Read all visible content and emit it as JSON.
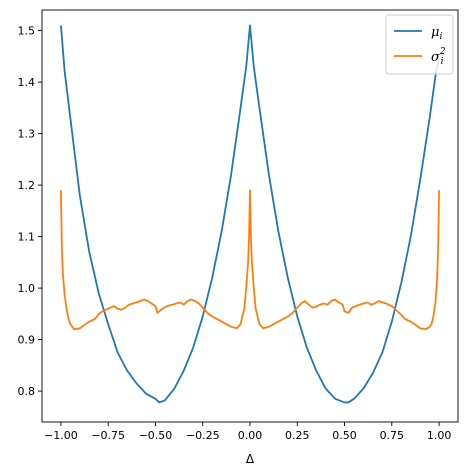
{
  "chart_data": {
    "type": "line",
    "title": "",
    "xlabel": "Δ",
    "ylabel": "",
    "xlim": [
      -1.1,
      1.1
    ],
    "ylim": [
      0.74,
      1.54
    ],
    "xticks": [
      -1.0,
      -0.75,
      -0.5,
      -0.25,
      0.0,
      0.25,
      0.5,
      0.75,
      1.0
    ],
    "xtick_labels": [
      "−1.00",
      "−0.75",
      "−0.50",
      "−0.25",
      "0.00",
      "0.25",
      "0.50",
      "0.75",
      "1.00"
    ],
    "yticks": [
      0.8,
      0.9,
      1.0,
      1.1,
      1.2,
      1.3,
      1.4,
      1.5
    ],
    "ytick_labels": [
      "0.8",
      "0.9",
      "1.0",
      "1.1",
      "1.2",
      "1.3",
      "1.4",
      "1.5"
    ],
    "legend": {
      "position": "top-right",
      "entries": [
        "μ_i",
        "σ_i^2"
      ]
    },
    "grid": false,
    "series": [
      {
        "name": "μ_i",
        "color": "#1f77b4",
        "x": [
          -1.0,
          -0.98,
          -0.95,
          -0.9,
          -0.85,
          -0.8,
          -0.75,
          -0.7,
          -0.65,
          -0.6,
          -0.55,
          -0.5,
          -0.48,
          -0.45,
          -0.4,
          -0.35,
          -0.3,
          -0.25,
          -0.2,
          -0.15,
          -0.1,
          -0.05,
          -0.02,
          0.0,
          0.02,
          0.05,
          0.1,
          0.15,
          0.2,
          0.25,
          0.3,
          0.35,
          0.4,
          0.45,
          0.5,
          0.52,
          0.55,
          0.6,
          0.65,
          0.7,
          0.75,
          0.8,
          0.85,
          0.9,
          0.95,
          0.98,
          1.0
        ],
        "y": [
          1.51,
          1.42,
          1.33,
          1.18,
          1.07,
          0.99,
          0.93,
          0.875,
          0.84,
          0.815,
          0.795,
          0.785,
          0.778,
          0.782,
          0.805,
          0.84,
          0.885,
          0.945,
          1.02,
          1.11,
          1.22,
          1.35,
          1.43,
          1.51,
          1.43,
          1.35,
          1.22,
          1.11,
          1.02,
          0.945,
          0.885,
          0.84,
          0.805,
          0.785,
          0.778,
          0.778,
          0.785,
          0.805,
          0.835,
          0.875,
          0.935,
          1.01,
          1.1,
          1.21,
          1.33,
          1.41,
          1.45
        ]
      },
      {
        "name": "σ_i^2",
        "color": "#ff7f0e",
        "x": [
          -1.0,
          -0.995,
          -0.99,
          -0.98,
          -0.97,
          -0.96,
          -0.95,
          -0.93,
          -0.9,
          -0.87,
          -0.85,
          -0.82,
          -0.8,
          -0.78,
          -0.75,
          -0.72,
          -0.7,
          -0.68,
          -0.66,
          -0.64,
          -0.62,
          -0.6,
          -0.58,
          -0.56,
          -0.54,
          -0.52,
          -0.5,
          -0.49,
          -0.47,
          -0.45,
          -0.43,
          -0.41,
          -0.39,
          -0.37,
          -0.35,
          -0.33,
          -0.31,
          -0.29,
          -0.27,
          -0.25,
          -0.22,
          -0.2,
          -0.15,
          -0.1,
          -0.07,
          -0.05,
          -0.03,
          -0.02,
          -0.01,
          -0.005,
          0.0,
          0.005,
          0.01,
          0.02,
          0.03,
          0.05,
          0.07,
          0.1,
          0.15,
          0.2,
          0.22,
          0.25,
          0.27,
          0.29,
          0.31,
          0.33,
          0.35,
          0.37,
          0.39,
          0.41,
          0.43,
          0.45,
          0.47,
          0.49,
          0.5,
          0.52,
          0.54,
          0.56,
          0.58,
          0.6,
          0.62,
          0.64,
          0.66,
          0.68,
          0.7,
          0.72,
          0.75,
          0.78,
          0.8,
          0.82,
          0.85,
          0.87,
          0.9,
          0.93,
          0.95,
          0.96,
          0.97,
          0.98,
          0.99,
          0.995,
          1.0
        ],
        "y": [
          1.19,
          1.08,
          1.03,
          0.985,
          0.96,
          0.94,
          0.93,
          0.92,
          0.922,
          0.93,
          0.935,
          0.94,
          0.95,
          0.955,
          0.96,
          0.965,
          0.96,
          0.958,
          0.962,
          0.968,
          0.97,
          0.972,
          0.975,
          0.978,
          0.975,
          0.97,
          0.965,
          0.952,
          0.958,
          0.963,
          0.966,
          0.968,
          0.97,
          0.972,
          0.968,
          0.975,
          0.978,
          0.975,
          0.97,
          0.962,
          0.95,
          0.945,
          0.935,
          0.925,
          0.922,
          0.93,
          0.96,
          1.0,
          1.05,
          1.1,
          1.19,
          1.1,
          1.05,
          1.0,
          0.96,
          0.93,
          0.922,
          0.925,
          0.935,
          0.945,
          0.95,
          0.962,
          0.97,
          0.975,
          0.968,
          0.962,
          0.964,
          0.968,
          0.97,
          0.968,
          0.975,
          0.978,
          0.972,
          0.968,
          0.955,
          0.952,
          0.962,
          0.965,
          0.968,
          0.97,
          0.972,
          0.968,
          0.97,
          0.975,
          0.972,
          0.97,
          0.965,
          0.955,
          0.948,
          0.94,
          0.935,
          0.93,
          0.922,
          0.92,
          0.925,
          0.93,
          0.945,
          0.97,
          1.02,
          1.08,
          1.19
        ]
      }
    ]
  }
}
